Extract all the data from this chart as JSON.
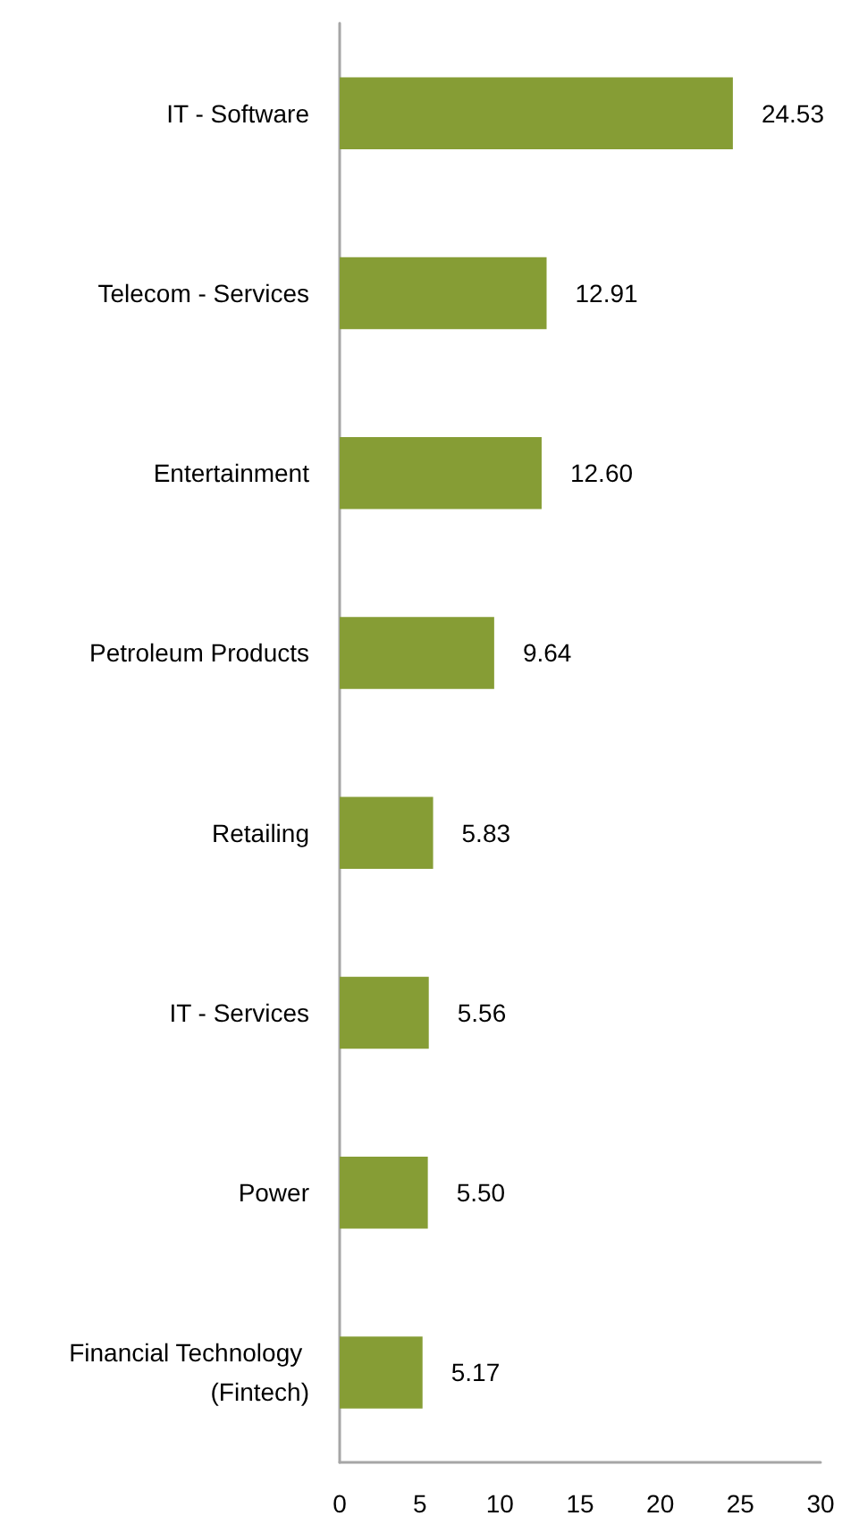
{
  "chart_data": {
    "type": "bar",
    "orientation": "horizontal",
    "categories": [
      "IT - Software",
      "Telecom - Services",
      "Entertainment",
      "Petroleum Products",
      "Retailing",
      "IT - Services",
      "Power",
      "Financial Technology (Fintech)"
    ],
    "values": [
      24.53,
      12.91,
      12.6,
      9.64,
      5.83,
      5.56,
      5.5,
      5.17
    ],
    "value_labels": [
      "24.53",
      "12.91",
      "12.60",
      "9.64",
      "5.83",
      "5.56",
      "5.50",
      "5.17"
    ],
    "color": "#869d35",
    "xlim": [
      0,
      30
    ],
    "xticks": [
      0,
      5,
      10,
      15,
      20,
      25,
      30
    ],
    "grid": false
  }
}
